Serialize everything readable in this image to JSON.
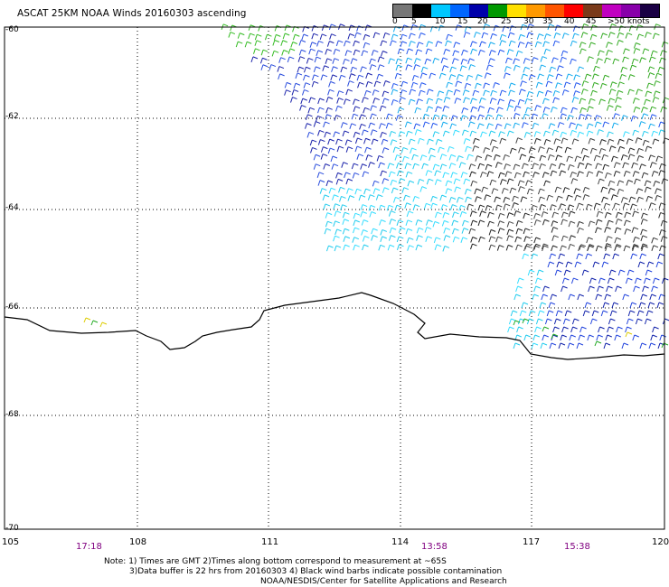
{
  "title": "ASCAT 25KM NOAA Winds 20160303 ascending",
  "legend": {
    "colors": [
      "#777777",
      "#000000",
      "#00c8ff",
      "#0066ff",
      "#0000aa",
      "#009900",
      "#ffe000",
      "#ff9900",
      "#ff5500",
      "#ff0000",
      "#7a3a1a",
      "#c000c0",
      "#8800aa",
      "#1a0044"
    ],
    "labels": [
      "0",
      "5",
      "10",
      "15",
      "20",
      "25",
      "30",
      "35",
      "40",
      "45",
      ">50 knots"
    ]
  },
  "latitude_labels": [
    "-60",
    "-62",
    "-64",
    "-66",
    "-68",
    "-70"
  ],
  "longitude_labels": [
    "105",
    "108",
    "111",
    "114",
    "117",
    "120"
  ],
  "pass_times": [
    "17:18",
    "13:58",
    "15:38"
  ],
  "notes": [
    "Note: 1) Times are GMT 2)Times along bottom correspond to measurement at ~65S",
    "3)Data buffer is 22 hrs from 20160303 4) Black wind barbs indicate possible contamination",
    "NOAA/NESDIS/Center for Satellite Applications and Research"
  ]
}
